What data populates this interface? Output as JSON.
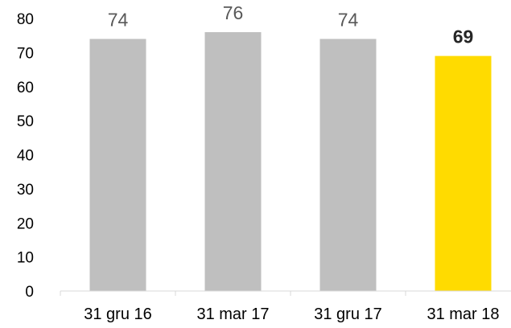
{
  "chart_data": {
    "type": "bar",
    "title": "",
    "xlabel": "",
    "ylabel": "",
    "categories": [
      "31 gru 16",
      "31 mar 17",
      "31 gru 17",
      "31 mar 18"
    ],
    "values": [
      74,
      76,
      74,
      69
    ],
    "data_labels": [
      "74",
      "76",
      "74",
      "69"
    ],
    "highlighted_index": 3,
    "ylim": [
      0,
      80
    ],
    "yticks": [
      0,
      10,
      20,
      30,
      40,
      50,
      60,
      70,
      80
    ],
    "grid": false,
    "legend": "none",
    "colors": {
      "bar": "#bfbfbf",
      "highlight": "#ffdb00",
      "axis": "#d9d9d9"
    }
  }
}
